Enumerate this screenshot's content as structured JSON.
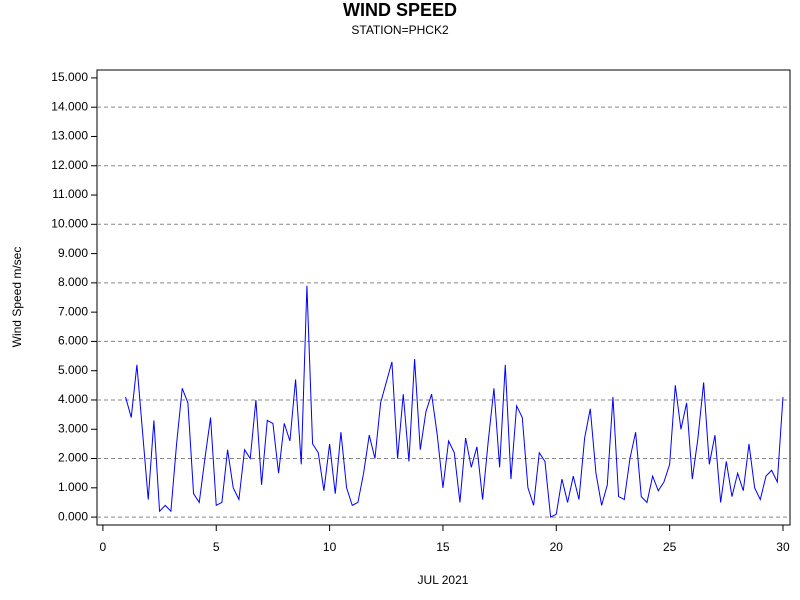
{
  "chart_data": {
    "type": "line",
    "title": "WIND SPEED",
    "subtitle": "STATION=PHCK2",
    "x_label": "JUL 2021",
    "y_label": "Wind Speed m/sec",
    "xlim": [
      -0.26,
      30.31
    ],
    "xticks": [
      0,
      5,
      10,
      15,
      20,
      25,
      30
    ],
    "ylim": [
      -0.27,
      15.27
    ],
    "yticks": [
      {
        "value": 0,
        "label": "0.000"
      },
      {
        "value": 1,
        "label": "1.000"
      },
      {
        "value": 2,
        "label": "2.000"
      },
      {
        "value": 3,
        "label": "3.000"
      },
      {
        "value": 4,
        "label": "4.000"
      },
      {
        "value": 5,
        "label": "5.000"
      },
      {
        "value": 6,
        "label": "6.000"
      },
      {
        "value": 7,
        "label": "7.000"
      },
      {
        "value": 8,
        "label": "8.000"
      },
      {
        "value": 9,
        "label": "9.000"
      },
      {
        "value": 10,
        "label": "10.000"
      },
      {
        "value": 11,
        "label": "11.000"
      },
      {
        "value": 12,
        "label": "12.000"
      },
      {
        "value": 13,
        "label": "13.000"
      },
      {
        "value": 14,
        "label": "14.000"
      },
      {
        "value": 15,
        "label": "15.000"
      }
    ],
    "ygrid": [
      0,
      2,
      4,
      6,
      8,
      10,
      12,
      14
    ],
    "color": "#0000ff",
    "x": [
      1.0,
      1.25,
      1.5,
      1.75,
      2.0,
      2.25,
      2.5,
      2.75,
      3.0,
      3.25,
      3.5,
      3.75,
      4.0,
      4.25,
      4.5,
      4.75,
      5.0,
      5.25,
      5.5,
      5.75,
      6.0,
      6.25,
      6.5,
      6.75,
      7.0,
      7.25,
      7.5,
      7.75,
      8.0,
      8.25,
      8.5,
      8.75,
      9.0,
      9.25,
      9.5,
      9.75,
      10.0,
      10.25,
      10.5,
      10.75,
      11.0,
      11.25,
      11.5,
      11.75,
      12.0,
      12.25,
      12.5,
      12.75,
      13.0,
      13.25,
      13.5,
      13.75,
      14.0,
      14.25,
      14.5,
      14.75,
      15.0,
      15.25,
      15.5,
      15.75,
      16.0,
      16.25,
      16.5,
      16.75,
      17.0,
      17.25,
      17.5,
      17.75,
      18.0,
      18.25,
      18.5,
      18.75,
      19.0,
      19.25,
      19.5,
      19.75,
      20.0,
      20.25,
      20.5,
      20.75,
      21.0,
      21.25,
      21.5,
      21.75,
      22.0,
      22.25,
      22.5,
      22.75,
      23.0,
      23.25,
      23.5,
      23.75,
      24.0,
      24.25,
      24.5,
      24.75,
      25.0,
      25.25,
      25.5,
      25.75,
      26.0,
      26.25,
      26.5,
      26.75,
      27.0,
      27.25,
      27.5,
      27.75,
      28.0,
      28.25,
      28.5,
      28.75,
      29.0,
      29.25,
      29.5,
      29.75,
      30.0
    ],
    "values": [
      4.1,
      3.4,
      5.2,
      2.9,
      0.6,
      3.3,
      0.2,
      0.4,
      0.2,
      2.5,
      4.4,
      3.9,
      0.8,
      0.5,
      2.0,
      3.4,
      0.4,
      0.5,
      2.3,
      1.0,
      0.6,
      2.3,
      2.0,
      4.0,
      1.1,
      3.3,
      3.2,
      1.5,
      3.2,
      2.6,
      4.7,
      1.8,
      7.9,
      2.5,
      2.2,
      0.9,
      2.5,
      0.8,
      2.9,
      1.0,
      0.4,
      0.5,
      1.5,
      2.8,
      2.0,
      3.9,
      4.6,
      5.3,
      2.0,
      4.2,
      1.9,
      5.4,
      2.3,
      3.6,
      4.2,
      2.8,
      1.0,
      2.6,
      2.2,
      0.5,
      2.7,
      1.7,
      2.4,
      0.6,
      2.6,
      4.4,
      1.7,
      5.2,
      1.3,
      3.8,
      3.4,
      1.0,
      0.4,
      2.2,
      1.9,
      0.0,
      0.1,
      1.3,
      0.5,
      1.4,
      0.6,
      2.7,
      3.7,
      1.5,
      0.4,
      1.1,
      4.1,
      0.7,
      0.6,
      2.0,
      2.9,
      0.7,
      0.5,
      1.4,
      0.9,
      1.2,
      1.8,
      4.5,
      3.0,
      3.9,
      1.3,
      2.7,
      4.6,
      1.8,
      2.8,
      0.5,
      1.9,
      0.7,
      1.5,
      0.9,
      2.5,
      1.0,
      0.6,
      1.4,
      1.6,
      1.2,
      4.1
    ]
  }
}
